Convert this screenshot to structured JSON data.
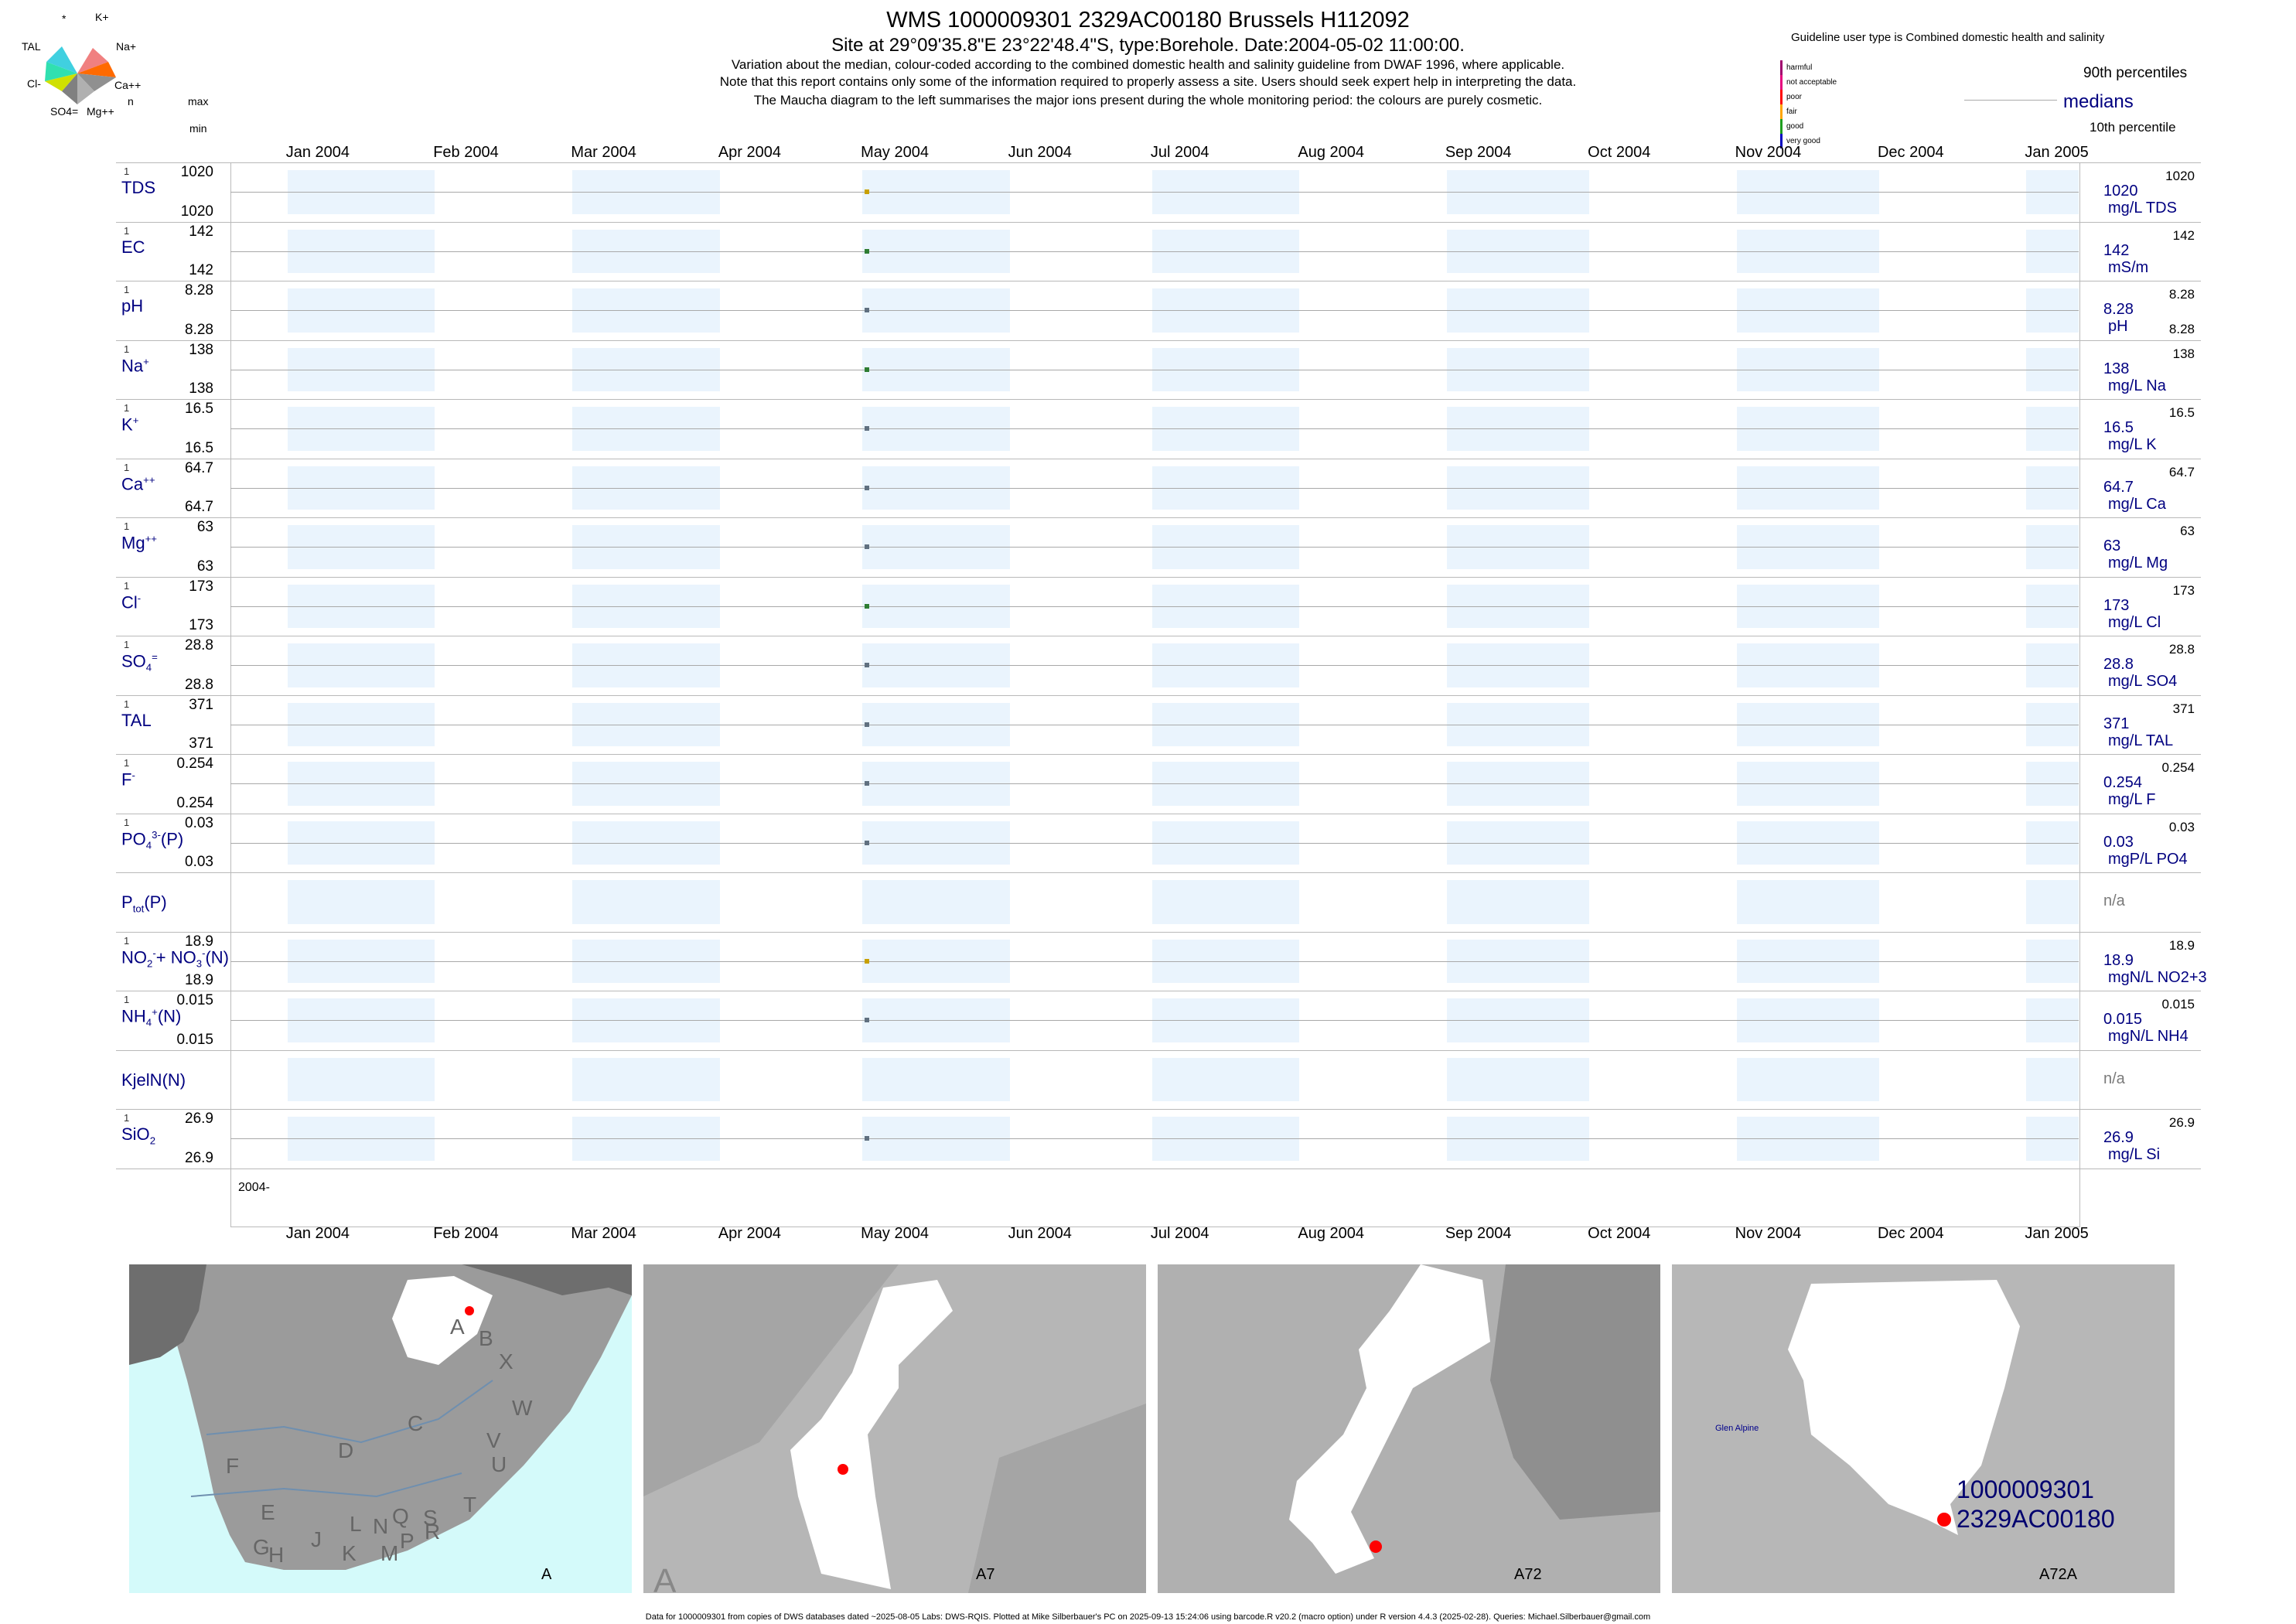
{
  "header": {
    "title": "WMS 1000009301 2329AC00180 Brussels H112092",
    "subtitle": "Site at 29°09'35.8\"E 23°22'48.4\"S, type:Borehole. Date:2004-05-02 11:00:00.",
    "line1": "Variation about the median,  colour-coded according to the combined domestic health and salinity guideline from DWAF 1996, where applicable.",
    "line2": "Note that this report contains only some of the information required to properly assess a site. Users should seek expert help in interpreting the data.",
    "line3": "The Maucha diagram to the left summarises the major ions present during the whole monitoring period: the colours are purely cosmetic."
  },
  "maucha": {
    "labels": [
      "*",
      "K+",
      "TAL",
      "Na+",
      "Cl-",
      "Ca++",
      "SO4=",
      "Mg++"
    ]
  },
  "left_header": {
    "n": "n",
    "max": "max",
    "min": "min"
  },
  "guideline": {
    "title": "Guideline user type is Combined domestic health and salinity",
    "classes": [
      {
        "label": "harmful",
        "color": "#a0006e"
      },
      {
        "label": "not acceptable",
        "color": "#e6007e"
      },
      {
        "label": "poor",
        "color": "#ff0000"
      },
      {
        "label": "fair",
        "color": "#ffa500"
      },
      {
        "label": "good",
        "color": "#1f9e1f"
      },
      {
        "label": "very good",
        "color": "#0000c0"
      }
    ],
    "p90_label": "90th percentiles",
    "median_label": "medians",
    "p10_label": "10th percentile"
  },
  "months_top": [
    "Jan 2004",
    "Feb 2004",
    "Mar 2004",
    "Apr 2004",
    "May 2004",
    "Jun 2004",
    "Jul 2004",
    "Aug 2004",
    "Sep 2004",
    "Oct 2004",
    "Nov 2004",
    "Dec 2004",
    "Jan 2005"
  ],
  "months_bottom": [
    "Jan 2004",
    "Feb 2004",
    "Mar 2004",
    "Apr 2004",
    "May 2004",
    "Jun 2004",
    "Jul 2004",
    "Aug 2004",
    "Sep 2004",
    "Oct 2004",
    "Nov 2004",
    "Dec 2004",
    "Jan 2005"
  ],
  "year_label": "2004-",
  "chart_data": {
    "type": "scatter",
    "x_range": [
      "2003-12-20",
      "2005-01-12"
    ],
    "sample_date": "2004-05-02",
    "parameters": [
      {
        "name": "TDS",
        "n": "1",
        "max": "1020",
        "min": "1020",
        "median": "1020",
        "unit": "mg/L TDS",
        "p90": "1020",
        "p10": "",
        "color": "#c8a000"
      },
      {
        "name": "EC",
        "n": "1",
        "max": "142",
        "min": "142",
        "median": "142",
        "unit": "mS/m",
        "p90": "142",
        "p10": "",
        "color": "#2e7d32"
      },
      {
        "name": "pH",
        "n": "1",
        "max": "8.28",
        "min": "8.28",
        "median": "8.28",
        "unit": "pH",
        "p90": "8.28",
        "p10": "8.28",
        "color": "#607080"
      },
      {
        "name": "Na+",
        "n": "1",
        "max": "138",
        "min": "138",
        "median": "138",
        "unit": "mg/L Na",
        "p90": "138",
        "p10": "",
        "color": "#2e7d32"
      },
      {
        "name": "K+",
        "n": "1",
        "max": "16.5",
        "min": "16.5",
        "median": "16.5",
        "unit": "mg/L K",
        "p90": "16.5",
        "p10": "",
        "color": "#607080"
      },
      {
        "name": "Ca++",
        "n": "1",
        "max": "64.7",
        "min": "64.7",
        "median": "64.7",
        "unit": "mg/L Ca",
        "p90": "64.7",
        "p10": "",
        "color": "#607080"
      },
      {
        "name": "Mg++",
        "n": "1",
        "max": "63",
        "min": "63",
        "median": "63",
        "unit": "mg/L Mg",
        "p90": "63",
        "p10": "",
        "color": "#607080"
      },
      {
        "name": "Cl-",
        "n": "1",
        "max": "173",
        "min": "173",
        "median": "173",
        "unit": "mg/L Cl",
        "p90": "173",
        "p10": "",
        "color": "#2e7d32"
      },
      {
        "name": "SO4=",
        "n": "1",
        "max": "28.8",
        "min": "28.8",
        "median": "28.8",
        "unit": "mg/L SO4",
        "p90": "28.8",
        "p10": "",
        "color": "#607080"
      },
      {
        "name": "TAL",
        "n": "1",
        "max": "371",
        "min": "371",
        "median": "371",
        "unit": "mg/L TAL",
        "p90": "371",
        "p10": "",
        "color": "#607080"
      },
      {
        "name": "F-",
        "n": "1",
        "max": "0.254",
        "min": "0.254",
        "median": "0.254",
        "unit": "mg/L F",
        "p90": "0.254",
        "p10": "",
        "color": "#607080"
      },
      {
        "name": "PO4(P)",
        "n": "1",
        "max": "0.03",
        "min": "0.03",
        "median": "0.03",
        "unit": "mgP/L PO4",
        "p90": "0.03",
        "p10": "",
        "color": "#607080"
      },
      {
        "name": "Ptot(P)",
        "n": "",
        "max": "",
        "min": "",
        "median": "n/a",
        "unit": "",
        "p90": "",
        "p10": "",
        "color": ""
      },
      {
        "name": "NO2+NO3(N)",
        "n": "1",
        "max": "18.9",
        "min": "18.9",
        "median": "18.9",
        "unit": "mgN/L NO2+3",
        "p90": "18.9",
        "p10": "",
        "color": "#c8a000"
      },
      {
        "name": "NH4(N)",
        "n": "1",
        "max": "0.015",
        "min": "0.015",
        "median": "0.015",
        "unit": "mgN/L NH4",
        "p90": "0.015",
        "p10": "",
        "color": "#607080"
      },
      {
        "name": "KjelN(N)",
        "n": "",
        "max": "",
        "min": "",
        "median": "n/a",
        "unit": "",
        "p90": "",
        "p10": "",
        "color": ""
      },
      {
        "name": "SiO2",
        "n": "1",
        "max": "26.9",
        "min": "26.9",
        "median": "26.9",
        "unit": "mg/L Si",
        "p90": "26.9",
        "p10": "",
        "color": "#607080"
      }
    ]
  },
  "maps": {
    "panel1_letters": [
      "A",
      "B",
      "X",
      "C",
      "W",
      "D",
      "V",
      "U",
      "F",
      "T",
      "E",
      "L",
      "N",
      "Q",
      "S",
      "G",
      "H",
      "J",
      "K",
      "M",
      "P",
      "R"
    ],
    "panel1_label": "A",
    "panel2_label": "A7",
    "panel2_big": "A",
    "panel3_label": "A72",
    "panel4_label": "A72A",
    "panel4_place": "Glen Alpine",
    "site_id": "1000009301",
    "site_code": "2329AC00180"
  },
  "footer": "Data for 1000009301 from copies of DWS databases dated ~2025-08-05 Labs: DWS-RQIS. Plotted at Mike Silberbauer's PC on 2025-09-13 15:24:06 using barcode.R v20.2 (macro option) under R version 4.4.3 (2025-02-28). Queries: Michael.Silberbauer@gmail.com"
}
